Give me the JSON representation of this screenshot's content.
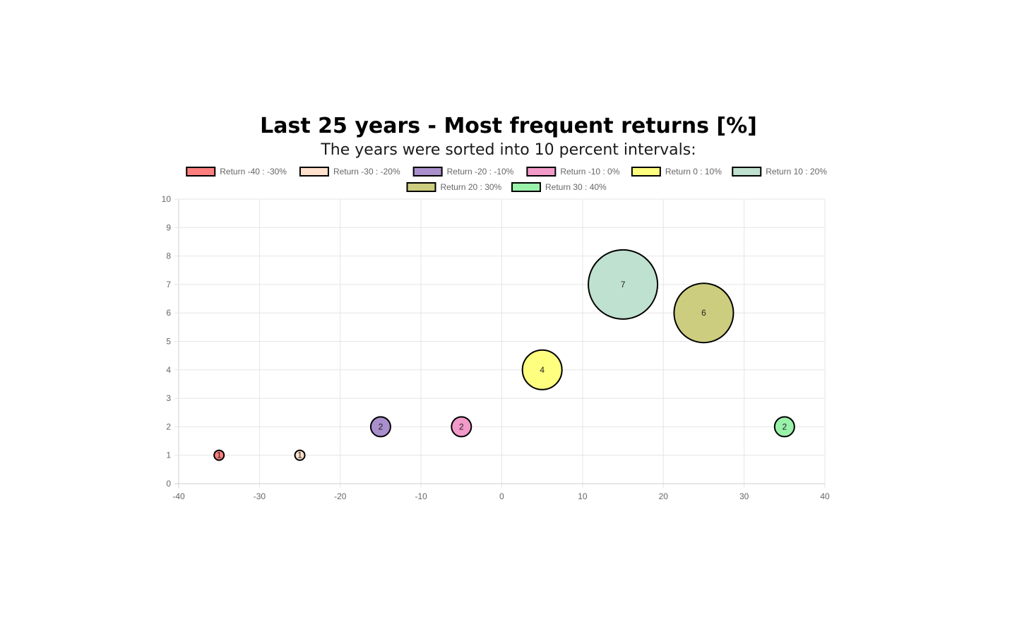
{
  "chart_data": {
    "type": "bubble",
    "title": "Last 25 years - Most frequent returns [%]",
    "subtitle": "The years were sorted into 10 percent intervals:",
    "xlim": [
      -40,
      40
    ],
    "ylim": [
      0,
      10
    ],
    "x_ticks": [
      "-40",
      "-30",
      "-20",
      "-10",
      "0",
      "10",
      "20",
      "30",
      "40"
    ],
    "y_ticks": [
      "0",
      "1",
      "2",
      "3",
      "4",
      "5",
      "6",
      "7",
      "8",
      "9",
      "10"
    ],
    "grid": true,
    "legend_position": "top-center",
    "series": [
      {
        "name": "Return -40 : -30%",
        "x": -35,
        "y": 1,
        "r": 1,
        "label": "1",
        "color": "#ff7f7f"
      },
      {
        "name": "Return -30 : -20%",
        "x": -25,
        "y": 1,
        "r": 1,
        "label": "1",
        "color": "#ffe1cc"
      },
      {
        "name": "Return -20 : -10%",
        "x": -15,
        "y": 2,
        "r": 2,
        "label": "2",
        "color": "#a98fcb"
      },
      {
        "name": "Return -10 : 0%",
        "x": -5,
        "y": 2,
        "r": 2,
        "label": "2",
        "color": "#f29ac9"
      },
      {
        "name": "Return 0 : 10%",
        "x": 5,
        "y": 4,
        "r": 4,
        "label": "4",
        "color": "#ffff7f"
      },
      {
        "name": "Return 10 : 20%",
        "x": 15,
        "y": 7,
        "r": 7,
        "label": "7",
        "color": "#bfe1cf"
      },
      {
        "name": "Return 20 : 30%",
        "x": 25,
        "y": 6,
        "r": 6,
        "label": "6",
        "color": "#cdcd7f"
      },
      {
        "name": "Return 30 : 40%",
        "x": 35,
        "y": 2,
        "r": 2,
        "label": "2",
        "color": "#99f2a9"
      }
    ]
  }
}
